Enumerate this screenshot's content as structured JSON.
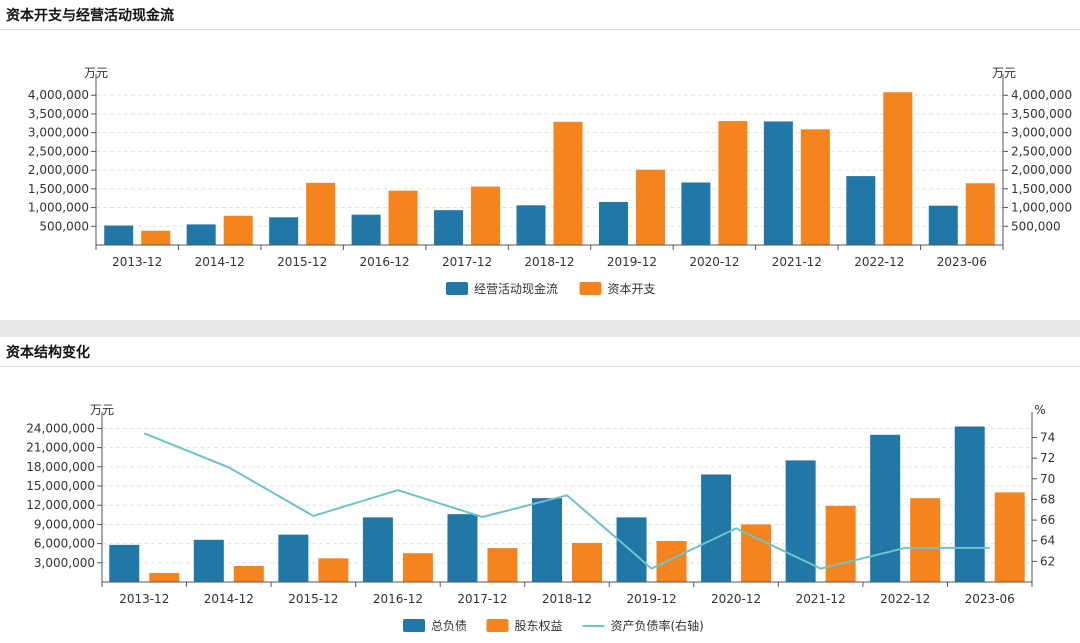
{
  "panels": [
    {
      "title": "资本开支与经营活动现金流"
    },
    {
      "title": "资本结构变化"
    }
  ],
  "chart_data": [
    {
      "type": "bar",
      "categories": [
        "2013-12",
        "2014-12",
        "2015-12",
        "2016-12",
        "2017-12",
        "2018-12",
        "2019-12",
        "2020-12",
        "2021-12",
        "2022-12",
        "2023-06"
      ],
      "series": [
        {
          "name": "经营活动现金流",
          "color": "#2177a5",
          "values": [
            520000,
            550000,
            740000,
            810000,
            930000,
            1060000,
            1150000,
            1670000,
            3300000,
            1840000,
            1050000
          ]
        },
        {
          "name": "资本开支",
          "color": "#f5841f",
          "values": [
            380000,
            780000,
            1660000,
            1450000,
            1560000,
            3290000,
            2010000,
            3310000,
            3090000,
            4080000,
            1650000
          ]
        }
      ],
      "ylabel_left": "万元",
      "ylabel_right": "万元",
      "yticks": [
        500000,
        1000000,
        1500000,
        2000000,
        2500000,
        3000000,
        3500000,
        4000000
      ],
      "ytick_labels": [
        "500,000",
        "1,000,000",
        "1,500,000",
        "2,000,000",
        "2,500,000",
        "3,000,000",
        "3,500,000",
        "4,000,000"
      ],
      "ylim": [
        0,
        4300000
      ],
      "grid": true,
      "legend": "bottom"
    },
    {
      "type": "bar",
      "categories": [
        "2013-12",
        "2014-12",
        "2015-12",
        "2016-12",
        "2017-12",
        "2018-12",
        "2019-12",
        "2020-12",
        "2021-12",
        "2022-12",
        "2023-06"
      ],
      "series": [
        {
          "name": "总负债",
          "color": "#2177a5",
          "values": [
            5800000,
            6600000,
            7400000,
            10100000,
            10600000,
            13100000,
            10100000,
            16800000,
            19000000,
            23000000,
            24300000
          ]
        },
        {
          "name": "股东权益",
          "color": "#f5841f",
          "values": [
            1400000,
            2500000,
            3700000,
            4500000,
            5300000,
            6100000,
            6400000,
            9000000,
            11900000,
            13100000,
            14000000
          ]
        }
      ],
      "line_series": {
        "name": "资产负债率(右轴)",
        "color": "#6cc4c9",
        "values": [
          74.4,
          71.1,
          66.4,
          68.9,
          66.3,
          68.4,
          61.3,
          65.2,
          61.3,
          63.3,
          63.3
        ]
      },
      "ylabel_left": "万元",
      "ylabel_right": "%",
      "yticks": [
        3000000,
        6000000,
        9000000,
        12000000,
        15000000,
        18000000,
        21000000,
        24000000
      ],
      "ytick_labels": [
        "3,000,000",
        "6,000,000",
        "9,000,000",
        "12,000,000",
        "15,000,000",
        "18,000,000",
        "21,000,000",
        "24,000,000"
      ],
      "ylim": [
        0,
        25000000
      ],
      "yticks_right": [
        62,
        64,
        66,
        68,
        70,
        72,
        74
      ],
      "ylim_right": [
        60,
        75.5
      ],
      "grid": true,
      "legend": "bottom"
    }
  ]
}
